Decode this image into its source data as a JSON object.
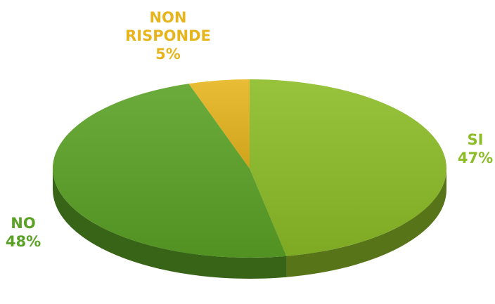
{
  "chart_data": {
    "type": "pie",
    "style": "3d",
    "title": "",
    "slices": [
      {
        "label": "SI",
        "value": 47,
        "value_label": "47%",
        "color": "#8cbc27"
      },
      {
        "label": "NO",
        "value": 48,
        "value_label": "48%",
        "color": "#5aa226"
      },
      {
        "label": "NON RISPONDE",
        "value": 5,
        "value_label": "5%",
        "color": "#e6b51e"
      }
    ],
    "legend": "none",
    "labels_outside": true
  }
}
